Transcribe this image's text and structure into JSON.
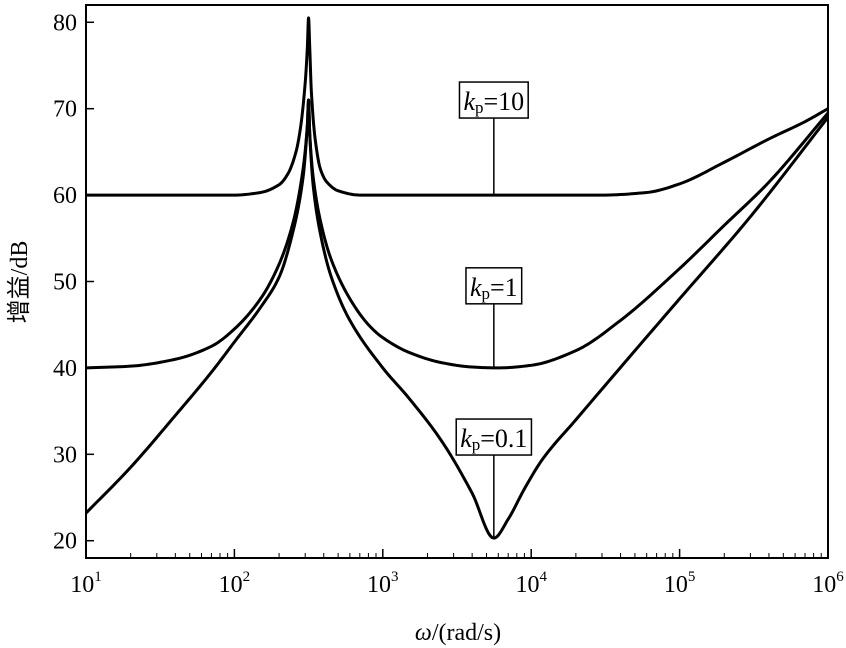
{
  "chart_data": {
    "type": "line",
    "xscale": "log",
    "xlim": [
      10,
      1000000
    ],
    "ylim": [
      18,
      82
    ],
    "xlabel_symbol": "ω",
    "xlabel_unit": "/(rad/s)",
    "ylabel": "增益/dB",
    "x_ticks": [
      {
        "base": "10",
        "exp": "1",
        "value": 10
      },
      {
        "base": "10",
        "exp": "2",
        "value": 100
      },
      {
        "base": "10",
        "exp": "3",
        "value": 1000
      },
      {
        "base": "10",
        "exp": "4",
        "value": 10000
      },
      {
        "base": "10",
        "exp": "5",
        "value": 100000
      },
      {
        "base": "10",
        "exp": "6",
        "value": 1000000
      }
    ],
    "y_ticks": [
      20,
      30,
      40,
      50,
      60,
      70,
      80
    ],
    "series": [
      {
        "name": "kp=10",
        "symbol": "k",
        "sub": "p",
        "value_text": "=10",
        "x": [
          10,
          100,
          150,
          200,
          230,
          260,
          280,
          300,
          310,
          316,
          322,
          330,
          350,
          380,
          420,
          500,
          700,
          1000,
          3000,
          10000,
          30000,
          60000,
          100000,
          200000,
          400000,
          700000,
          1000000
        ],
        "y": [
          60,
          60,
          60.3,
          61.2,
          62.5,
          65,
          68,
          73,
          77,
          80.5,
          77,
          72,
          66.5,
          63,
          61.5,
          60.5,
          60,
          60,
          60,
          60,
          60,
          60.3,
          61.3,
          63.8,
          66.5,
          68.5,
          70
        ],
        "annotation_x": 5600
      },
      {
        "name": "kp=1",
        "symbol": "k",
        "sub": "p",
        "value_text": "=1",
        "x": [
          10,
          20,
          40,
          70,
          100,
          150,
          200,
          250,
          290,
          310,
          316,
          322,
          340,
          380,
          450,
          600,
          800,
          1000,
          1500,
          2500,
          4000,
          6000,
          10000,
          20000,
          40000,
          100000,
          200000,
          400000,
          1000000
        ],
        "y": [
          40,
          40.2,
          41,
          42.5,
          44.5,
          48,
          52,
          57,
          63,
          68,
          71,
          67,
          62,
          57,
          52.5,
          48,
          45,
          43.5,
          41.8,
          40.6,
          40.1,
          40,
          40.3,
          42,
          45.5,
          51.5,
          56.5,
          61.5,
          69.5
        ],
        "annotation_x": 5600
      },
      {
        "name": "kp=0.1",
        "symbol": "k",
        "sub": "p",
        "value_text": "=0.1",
        "x": [
          10,
          20,
          40,
          70,
          100,
          150,
          200,
          250,
          290,
          310,
          316,
          322,
          340,
          380,
          450,
          600,
          1000,
          1500,
          2500,
          4000,
          5600,
          7000,
          9000,
          12000,
          20000,
          50000,
          100000,
          300000,
          1000000
        ],
        "y": [
          23.2,
          28.5,
          34.5,
          39.5,
          43,
          47,
          50.5,
          56,
          62,
          68,
          71,
          67,
          61,
          55.5,
          50.5,
          45.5,
          40,
          36.5,
          31.5,
          25.5,
          20.3,
          22.5,
          26,
          29.5,
          34,
          42,
          48,
          57.5,
          69
        ],
        "annotation_x": 5600
      }
    ],
    "annotations": [
      {
        "series": 0,
        "box_y": 71,
        "line_to_y": 60
      },
      {
        "series": 1,
        "box_y": 49.5,
        "line_to_y": 40
      },
      {
        "series": 2,
        "box_y": 32,
        "line_to_y": 20.3
      }
    ]
  }
}
